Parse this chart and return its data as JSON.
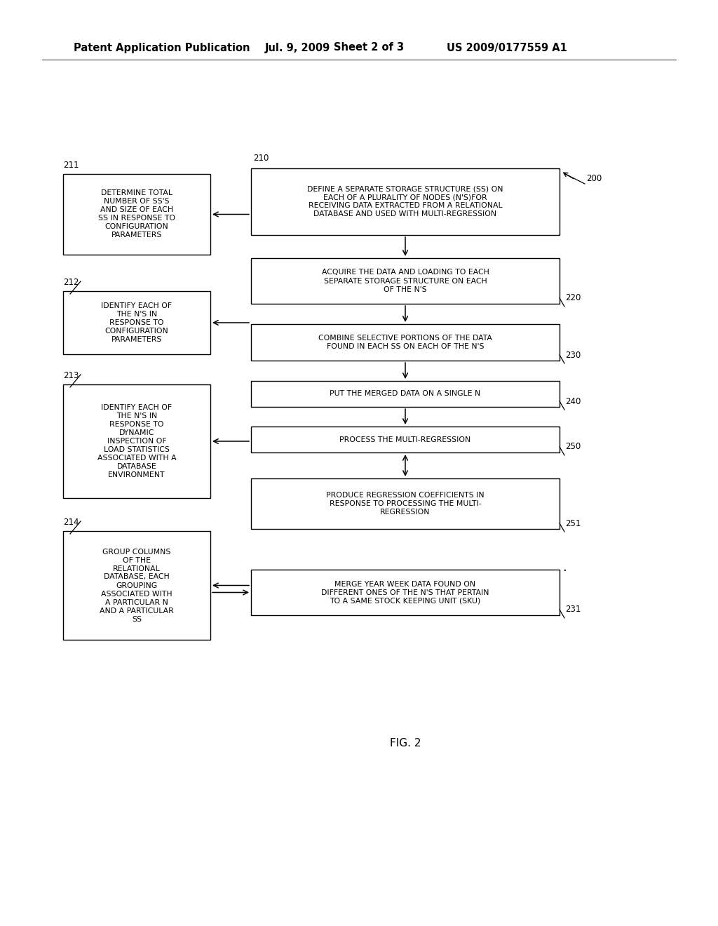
{
  "bg_color": "#ffffff",
  "header_line1": "Patent Application Publication",
  "header_line2": "Jul. 9, 2009",
  "header_line3": "Sheet 2 of 3",
  "header_line4": "US 2009/0177559 A1",
  "fig_label": "FIG. 2",
  "box_200_text": "DEFINE A SEPARATE STORAGE STRUCTURE (SS) ON\nEACH OF A PLURALITY OF NODES (N'S)FOR\nRECEIVING DATA EXTRACTED FROM A RELATIONAL\nDATABASE AND USED WITH MULTI-REGRESSION",
  "box_211_text": "DETERMINE TOTAL\nNUMBER OF SS'S\nAND SIZE OF EACH\nSS IN RESPONSE TO\nCONFIGURATION\nPARAMETERS",
  "box_212_text": "IDENTIFY EACH OF\nTHE N'S IN\nRESPONSE TO\nCONFIGURATION\nPARAMETERS",
  "box_213_text": "IDENTIFY EACH OF\nTHE N'S IN\nRESPONSE TO\nDYNAMIC\nINSPECTION OF\nLOAD STATISTICS\nASSOCIATED WITH A\nDATABASE\nENVIRONMENT",
  "box_214_text": "GROUP COLUMNS\nOF THE\nRELATIONAL\nDATABASE, EACH\nGROUPING\nASSOCIATED WITH\nA PARTICULAR N\nAND A PARTICULAR\nSS",
  "box_220_text": "ACQUIRE THE DATA AND LOADING TO EACH\nSEPARATE STORAGE STRUCTURE ON EACH\nOF THE N'S",
  "box_230_text": "COMBINE SELECTIVE PORTIONS OF THE DATA\nFOUND IN EACH SS ON EACH OF THE N'S",
  "box_231_text": "MERGE YEAR WEEK DATA FOUND ON\nDIFFERENT ONES OF THE N'S THAT PERTAIN\nTO A SAME STOCK KEEPING UNIT (SKU)",
  "box_240_text": "PUT THE MERGED DATA ON A SINGLE N",
  "box_250_text": "PROCESS THE MULTI-REGRESSION",
  "box_251_text": "PRODUCE REGRESSION COEFFICIENTS IN\nRESPONSE TO PROCESSING THE MULTI-\nREGRESSION",
  "font_size_header": 10.5,
  "font_size_body": 7.8,
  "font_size_label": 8.5,
  "font_size_fig": 11
}
